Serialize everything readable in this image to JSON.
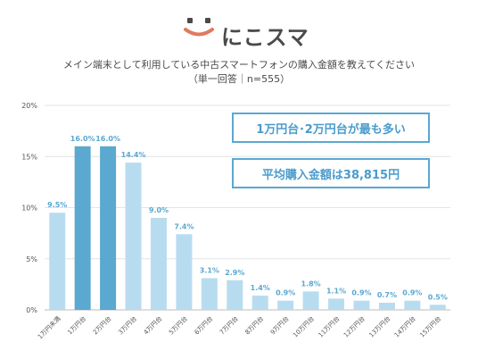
{
  "brand": {
    "name": "にこスマ",
    "logo_colors": [
      "#e07a5f",
      "#4a4a4a"
    ]
  },
  "chart_data": {
    "type": "bar",
    "title": "メイン端末として利用している中古スマートフォンの購入金額を教えてください",
    "subtitle": "（単一回答｜n=555）",
    "categories": [
      "1万円未満",
      "1万円台",
      "2万円台",
      "3万円台",
      "4万円台",
      "5万円台",
      "6万円台",
      "7万円台",
      "8万円台",
      "9万円台",
      "10万円台",
      "11万円台",
      "12万円台",
      "13万円台",
      "14万円台",
      "15万円台"
    ],
    "values": [
      9.5,
      16.0,
      16.0,
      14.4,
      9.0,
      7.4,
      3.1,
      2.9,
      1.4,
      0.9,
      1.8,
      1.1,
      0.9,
      0.7,
      0.9,
      0.5
    ],
    "data_labels": [
      "9.5%",
      "16.0%",
      "16.0%",
      "14.4%",
      "9.0%",
      "7.4%",
      "3.1%",
      "2.9%",
      "1.4%",
      "0.9%",
      "1.8%",
      "1.1%",
      "0.9%",
      "0.7%",
      "0.9%",
      "0.5%"
    ],
    "highlighted": [
      "1万円台",
      "2万円台"
    ],
    "y_ticks": [
      "0%",
      "5%",
      "10%",
      "15%",
      "20%"
    ],
    "ylim": [
      0,
      20
    ],
    "grid": true,
    "colors": {
      "bar": "#b8dcef",
      "highlight": "#5ba8d0",
      "label": "#5ba8d0",
      "axis_text": "#555555"
    }
  },
  "callouts": {
    "top": "1万円台･2万円台が最も多い",
    "average": "平均購入金額は38,815円"
  }
}
